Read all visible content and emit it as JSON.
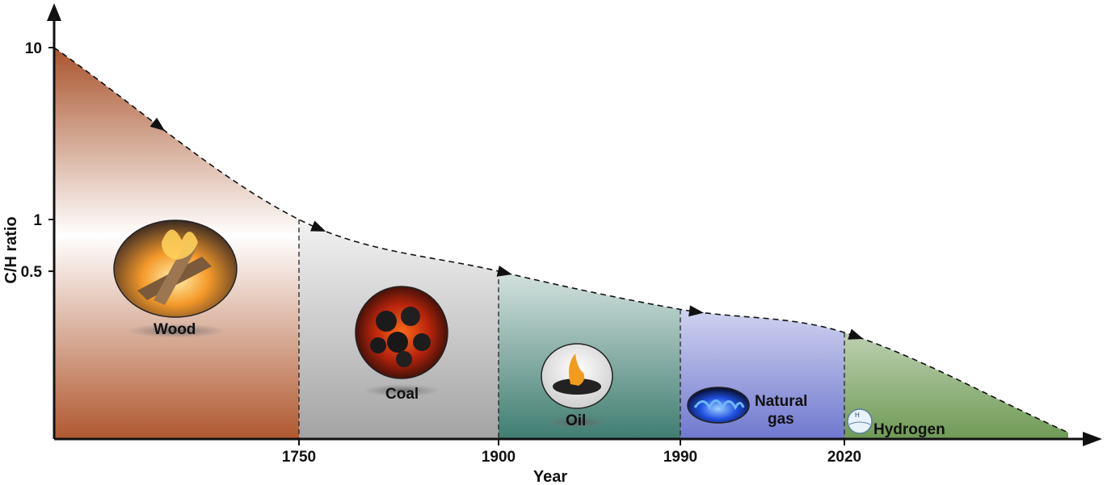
{
  "chart_data": {
    "type": "area",
    "xlabel": "Year",
    "ylabel": "C/H ratio",
    "yscale": "log",
    "y_ticks": [
      {
        "value": 10,
        "label": "10"
      },
      {
        "value": 1,
        "label": "1"
      },
      {
        "value": 0.5,
        "label": "0.5"
      }
    ],
    "x_ticks": [
      "1750",
      "1900",
      "1990",
      "2020"
    ],
    "eras": [
      {
        "label": "Wood",
        "icon": "wood-fire-icon",
        "color": "#b0582f"
      },
      {
        "label": "Coal",
        "icon": "burning-coal-icon",
        "color": "#a8a8a8"
      },
      {
        "label": "Oil",
        "icon": "oil-flame-icon",
        "color": "#3f7d70"
      },
      {
        "label": "Natural gas",
        "icon": "gas-burner-flame-icon",
        "color": "#5560c4"
      },
      {
        "label": "Hydrogen",
        "icon": "hydrogen-globe-icon",
        "color": "#6f9a55"
      }
    ],
    "boundary_values": [
      {
        "year": "start",
        "value": 10
      },
      {
        "year": "1750",
        "value": 1.0
      },
      {
        "year": "1900",
        "value": 0.5
      },
      {
        "year": "1990",
        "value": 0.3
      },
      {
        "year": "2020",
        "value": 0.22
      }
    ]
  }
}
